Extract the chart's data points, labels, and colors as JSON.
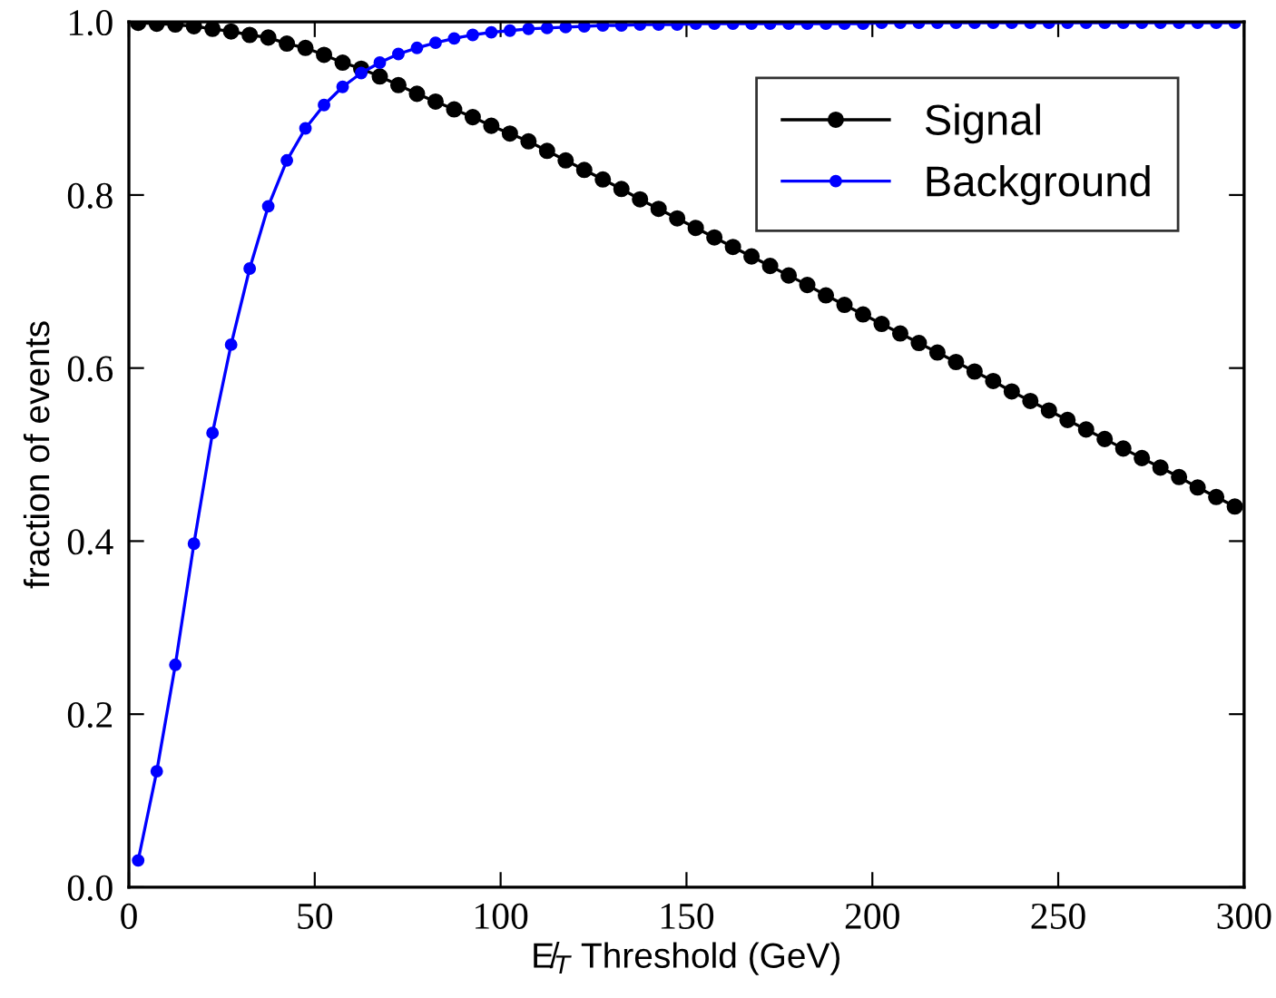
{
  "chart_data": {
    "type": "line",
    "xlabel": "E̸$_{T}$ Threshold (GeV)",
    "ylabel": "fraction of events",
    "x": [
      2.5,
      7.5,
      12.5,
      17.5,
      22.5,
      27.5,
      32.5,
      37.5,
      42.5,
      47.5,
      52.5,
      57.5,
      62.5,
      67.5,
      72.5,
      77.5,
      82.5,
      87.5,
      92.5,
      97.5,
      102.5,
      107.5,
      112.5,
      117.5,
      122.5,
      127.5,
      132.5,
      137.5,
      142.5,
      147.5,
      152.5,
      157.5,
      162.5,
      167.5,
      172.5,
      177.5,
      182.5,
      187.5,
      192.5,
      197.5,
      202.5,
      207.5,
      212.5,
      217.5,
      222.5,
      227.5,
      232.5,
      237.5,
      242.5,
      247.5,
      252.5,
      257.5,
      262.5,
      267.5,
      272.5,
      277.5,
      282.5,
      287.5,
      292.5,
      297.5
    ],
    "series": [
      {
        "name": "Signal",
        "color": "#000000",
        "values": [
          0.999,
          0.998,
          0.997,
          0.995,
          0.992,
          0.989,
          0.985,
          0.982,
          0.975,
          0.97,
          0.962,
          0.953,
          0.946,
          0.937,
          0.927,
          0.917,
          0.908,
          0.899,
          0.89,
          0.88,
          0.871,
          0.862,
          0.851,
          0.84,
          0.829,
          0.818,
          0.807,
          0.795,
          0.784,
          0.773,
          0.762,
          0.751,
          0.74,
          0.729,
          0.718,
          0.707,
          0.696,
          0.684,
          0.673,
          0.662,
          0.651,
          0.64,
          0.629,
          0.618,
          0.607,
          0.596,
          0.585,
          0.573,
          0.562,
          0.551,
          0.54,
          0.529,
          0.518,
          0.507,
          0.496,
          0.485,
          0.474,
          0.462,
          0.451,
          0.44
        ]
      },
      {
        "name": "Background",
        "color": "#0000ff",
        "values": [
          0.031,
          0.134,
          0.257,
          0.397,
          0.525,
          0.627,
          0.715,
          0.787,
          0.84,
          0.877,
          0.904,
          0.925,
          0.941,
          0.953,
          0.963,
          0.97,
          0.976,
          0.981,
          0.985,
          0.988,
          0.99,
          0.992,
          0.993,
          0.994,
          0.995,
          0.996,
          0.996,
          0.997,
          0.997,
          0.997,
          0.998,
          0.998,
          0.998,
          0.998,
          0.998,
          0.998,
          0.998,
          0.998,
          0.998,
          0.998,
          0.999,
          0.999,
          0.999,
          0.999,
          0.999,
          0.999,
          0.999,
          0.999,
          0.999,
          0.999,
          0.999,
          0.999,
          0.999,
          0.999,
          0.999,
          0.999,
          0.999,
          0.999,
          0.999,
          0.999
        ],
        "xerrors": [
          1.5,
          1.5,
          1.5,
          1.5,
          1.5,
          1.5,
          1.5,
          1.5,
          1.5,
          1.5,
          1.5,
          1.5,
          1.5,
          1.5,
          1.5,
          1.5,
          1.5,
          1.5,
          1.5,
          1.5,
          1.5,
          1.5,
          1.5,
          1.5,
          1.5,
          1.5,
          1.5,
          1.5,
          1.5,
          1.5,
          1.5,
          1.5,
          1.5,
          1.5,
          1.5,
          1.5,
          1.5,
          1.5,
          1.5,
          1.5,
          1.5,
          1.5,
          1.5,
          1.5,
          1.5,
          1.5,
          1.5,
          1.5,
          1.5,
          1.5,
          1.5,
          1.5,
          1.5,
          1.5,
          1.5,
          1.5,
          1.5,
          1.5,
          1.5,
          1.5
        ]
      }
    ],
    "xlim": [
      0,
      300
    ],
    "xticks": [
      0,
      50,
      100,
      150,
      200,
      250,
      300
    ],
    "ylim": [
      0,
      1
    ],
    "yticks": [
      {
        "value": 0,
        "label": "0.0"
      },
      {
        "value": 0.2,
        "label": "0.2"
      },
      {
        "value": 0.4,
        "label": "0.4"
      },
      {
        "value": 0.6,
        "label": "0.6"
      },
      {
        "value": 0.8,
        "label": "0.8"
      },
      {
        "value": 1,
        "label": "1.0"
      }
    ],
    "grid": false,
    "legend": "top right",
    "marker": "circle",
    "line_style": "solid"
  }
}
